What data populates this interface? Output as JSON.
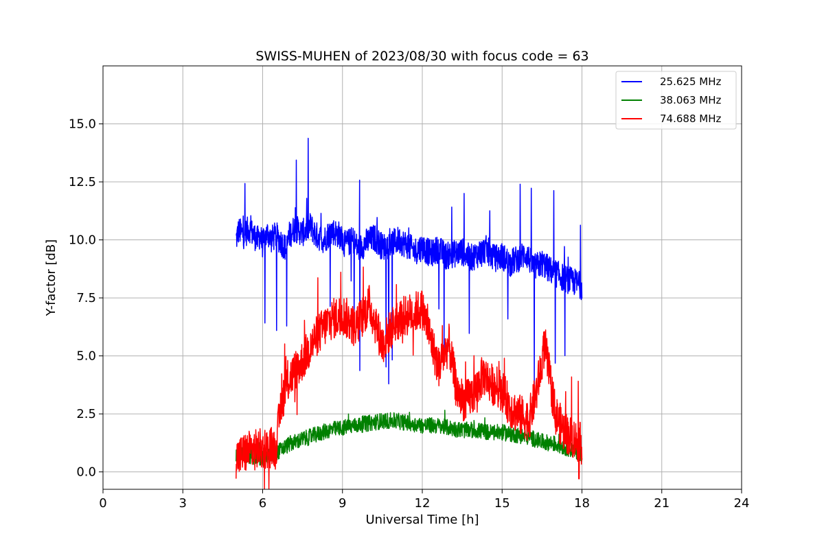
{
  "chart_data": {
    "type": "line",
    "title": "SWISS-MUHEN of 2023/08/30 with focus code = 63",
    "xlabel": "Universal Time [h]",
    "ylabel": "Y-factor [dB]",
    "xlim": [
      0,
      24
    ],
    "ylim": [
      -0.75,
      17.5
    ],
    "xticks": [
      0,
      3,
      6,
      9,
      12,
      15,
      18,
      21,
      24
    ],
    "xtick_labels": [
      "0",
      "3",
      "6",
      "9",
      "12",
      "15",
      "18",
      "21",
      "24"
    ],
    "yticks": [
      0,
      2.5,
      5,
      7.5,
      10,
      12.5,
      15
    ],
    "ytick_labels": [
      "0.0",
      "2.5",
      "5.0",
      "7.5",
      "10.0",
      "12.5",
      "15.0"
    ],
    "grid": true,
    "legend_position": "top-right",
    "series": [
      {
        "name": "25.625 MHz",
        "color": "#0000ff",
        "x": [
          5.0,
          5.1,
          5.3,
          5.5,
          5.6,
          5.8,
          5.9,
          6.0,
          6.1,
          6.2,
          6.3,
          6.5,
          6.7,
          6.9,
          7.0,
          7.2,
          7.5,
          7.8,
          8.0,
          8.3,
          8.6,
          8.9,
          9.1,
          9.4,
          9.6,
          9.9,
          10.2,
          10.5,
          10.8,
          11.1,
          11.4,
          11.7,
          12.0,
          12.3,
          12.6,
          12.9,
          13.2,
          13.5,
          13.8,
          14.1,
          14.4,
          14.7,
          15.0,
          15.3,
          15.6,
          15.9,
          16.2,
          16.5,
          16.8,
          17.1,
          17.4,
          17.7,
          18.0
        ],
        "y": [
          10.0,
          10.4,
          10.2,
          10.5,
          10.3,
          10.0,
          10.2,
          9.8,
          10.1,
          10.3,
          10.0,
          10.2,
          9.9,
          9.6,
          10.2,
          10.5,
          10.3,
          10.6,
          10.2,
          10.0,
          10.4,
          10.2,
          9.8,
          10.0,
          9.6,
          9.9,
          10.1,
          9.7,
          9.8,
          10.0,
          9.8,
          9.5,
          9.7,
          9.4,
          9.6,
          9.3,
          9.4,
          9.5,
          9.2,
          9.4,
          9.6,
          9.2,
          9.3,
          9.0,
          9.2,
          9.4,
          8.8,
          9.0,
          8.7,
          8.5,
          8.3,
          8.2,
          8.0
        ]
      },
      {
        "name": "38.063 MHz",
        "color": "#008000",
        "x": [
          5.0,
          5.5,
          6.0,
          6.5,
          7.0,
          7.5,
          8.0,
          8.5,
          9.0,
          9.5,
          10.0,
          10.5,
          11.0,
          11.5,
          12.0,
          12.5,
          13.0,
          13.5,
          14.0,
          14.5,
          15.0,
          15.5,
          16.0,
          16.5,
          17.0,
          17.5,
          18.0
        ],
        "y": [
          0.8,
          0.7,
          0.6,
          0.8,
          1.2,
          1.4,
          1.6,
          1.8,
          1.9,
          2.0,
          2.1,
          2.2,
          2.2,
          2.1,
          2.0,
          2.0,
          1.9,
          1.8,
          1.8,
          1.7,
          1.7,
          1.6,
          1.5,
          1.3,
          1.2,
          1.0,
          0.8
        ]
      },
      {
        "name": "74.688 MHz",
        "color": "#ff0000",
        "x": [
          5.0,
          5.5,
          6.0,
          6.5,
          6.7,
          7.0,
          7.5,
          8.0,
          8.5,
          9.0,
          9.5,
          10.0,
          10.5,
          11.0,
          11.5,
          12.0,
          12.3,
          12.6,
          13.0,
          13.3,
          13.6,
          14.0,
          14.3,
          14.6,
          15.0,
          15.3,
          15.6,
          16.0,
          16.3,
          16.6,
          17.0,
          17.3,
          17.6,
          18.0
        ],
        "y": [
          0.6,
          0.9,
          1.0,
          1.1,
          3.0,
          4.0,
          4.8,
          5.8,
          6.5,
          6.8,
          6.2,
          7.2,
          5.5,
          6.5,
          6.8,
          7.0,
          5.8,
          4.5,
          5.5,
          3.5,
          3.0,
          3.5,
          4.2,
          3.8,
          3.5,
          2.8,
          2.5,
          2.2,
          3.5,
          5.5,
          2.5,
          1.8,
          1.5,
          1.2
        ]
      }
    ]
  }
}
